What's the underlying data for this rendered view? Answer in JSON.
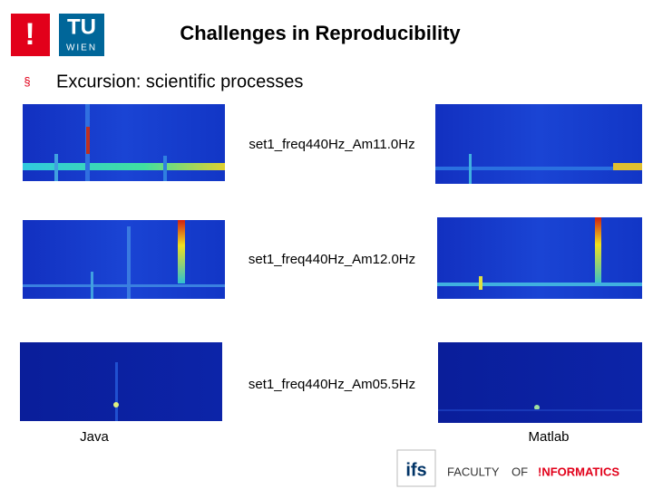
{
  "header": {
    "logo_left": "!",
    "logo_tu": "TU",
    "logo_wien": "WIEN",
    "title": "Challenges in Reproducibility"
  },
  "bullet": {
    "marker": "§",
    "text": "Excursion: scientific processes"
  },
  "rows": [
    {
      "label": "set1_freq440Hz_Am11.0Hz"
    },
    {
      "label": "set1_freq440Hz_Am12.0Hz"
    },
    {
      "label": "set1_freq440Hz_Am05.5Hz"
    }
  ],
  "columns": [
    "Java",
    "Matlab"
  ],
  "footer": {
    "ifs": "ifs",
    "faculty": "FACULTY",
    "of": "OF",
    "informatics": "!NFORMATICS"
  }
}
